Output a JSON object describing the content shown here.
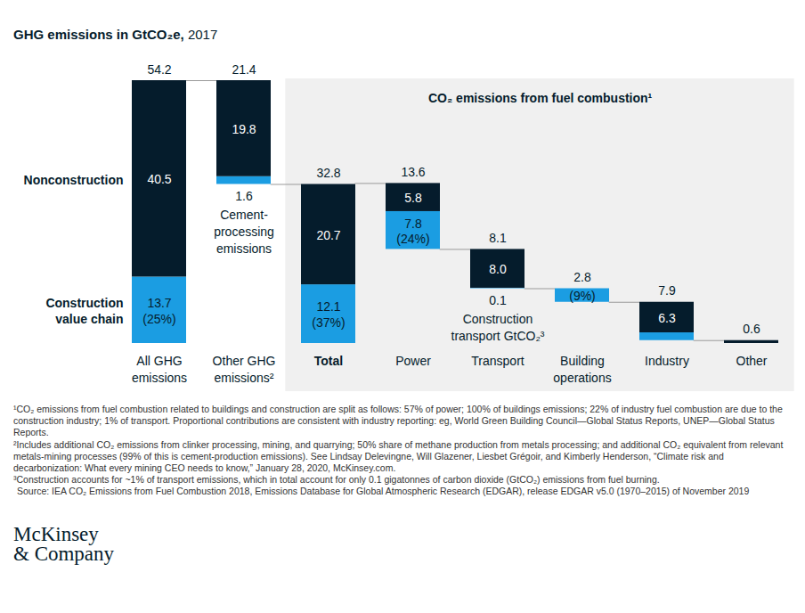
{
  "chart_data": {
    "type": "waterfall",
    "title": "GHG emissions in GtCO₂e, 2017",
    "categories": [
      "All GHG emissions",
      "Other GHG emissions²",
      "Total",
      "Power",
      "Transport",
      "Building operations",
      "Industry",
      "Other"
    ],
    "series": [
      {
        "name": "Nonconstruction",
        "color": "#051c2c",
        "values": [
          40.5,
          19.8,
          20.7,
          5.8,
          8.0,
          0,
          6.3,
          0.6
        ],
        "value_labels": [
          "40.5",
          "19.8",
          "20.7",
          "5.8",
          "8.0",
          null,
          "6.3",
          null
        ]
      },
      {
        "name": "Construction value chain",
        "color": "#1b9de2",
        "values": [
          13.7,
          1.6,
          12.1,
          7.8,
          0.1,
          2.8,
          1.6,
          0
        ],
        "value_labels": [
          "13.7",
          "1.6",
          "12.1",
          "7.8",
          "0.1",
          null,
          null,
          null
        ],
        "share_labels": [
          "(25%)",
          null,
          "(37%)",
          "(24%)",
          null,
          "(9%)",
          null,
          null
        ]
      }
    ],
    "totals": [
      54.2,
      21.4,
      32.8,
      13.6,
      8.1,
      2.8,
      7.9,
      0.6
    ],
    "stacked": true,
    "data_labels": true,
    "tick_labels": "x",
    "ylim": [
      0,
      54.2
    ],
    "yticks": [],
    "panel_title": "CO₂ emissions from fuel combustion¹",
    "annotations": [
      {
        "category": "Other GHG emissions²",
        "text": "Cement-\nprocessing\nemissions"
      },
      {
        "category": "Transport",
        "text": "Construction\ntransport GtCO₂³"
      }
    ],
    "footnotes": [
      "¹CO₂ emissions from fuel combustion related to buildings and construction are split as follows: 57% of power; 100% of buildings emissions; 22% of industry fuel combustion are due to the construction industry; 1% of transport. Proportional contributions are consistent with industry reporting: eg, World Green Building Council—Global Status Reports, UNEP—Global Status Reports.",
      "²Includes additional CO₂ emissions from clinker processing, mining, and quarrying; 50% share of methane production from metals processing; and additional CO₂ equivalent from relevant metals-mining processes (99% of this is cement-production emissions). See Lindsay Delevingne, Will Glazener, Liesbet Grégoir, and Kimberly Henderson, “Climate risk and decarbonization: What every mining CEO needs to know,” January 28, 2020, McKinsey.com.",
      "³Construction accounts for ~1% of transport emissions, which in total account for only 0.1 gigatonnes of carbon dioxide (GtCO₂) emissions from fuel burning."
    ],
    "source": "Source: IEA CO₂ Emissions from Fuel Combustion 2018, Emissions Database for Global Atmospheric Research (EDGAR), release EDGAR v5.0 (1970–2015) of November 2019",
    "logo": "McKinsey\n& Company"
  }
}
